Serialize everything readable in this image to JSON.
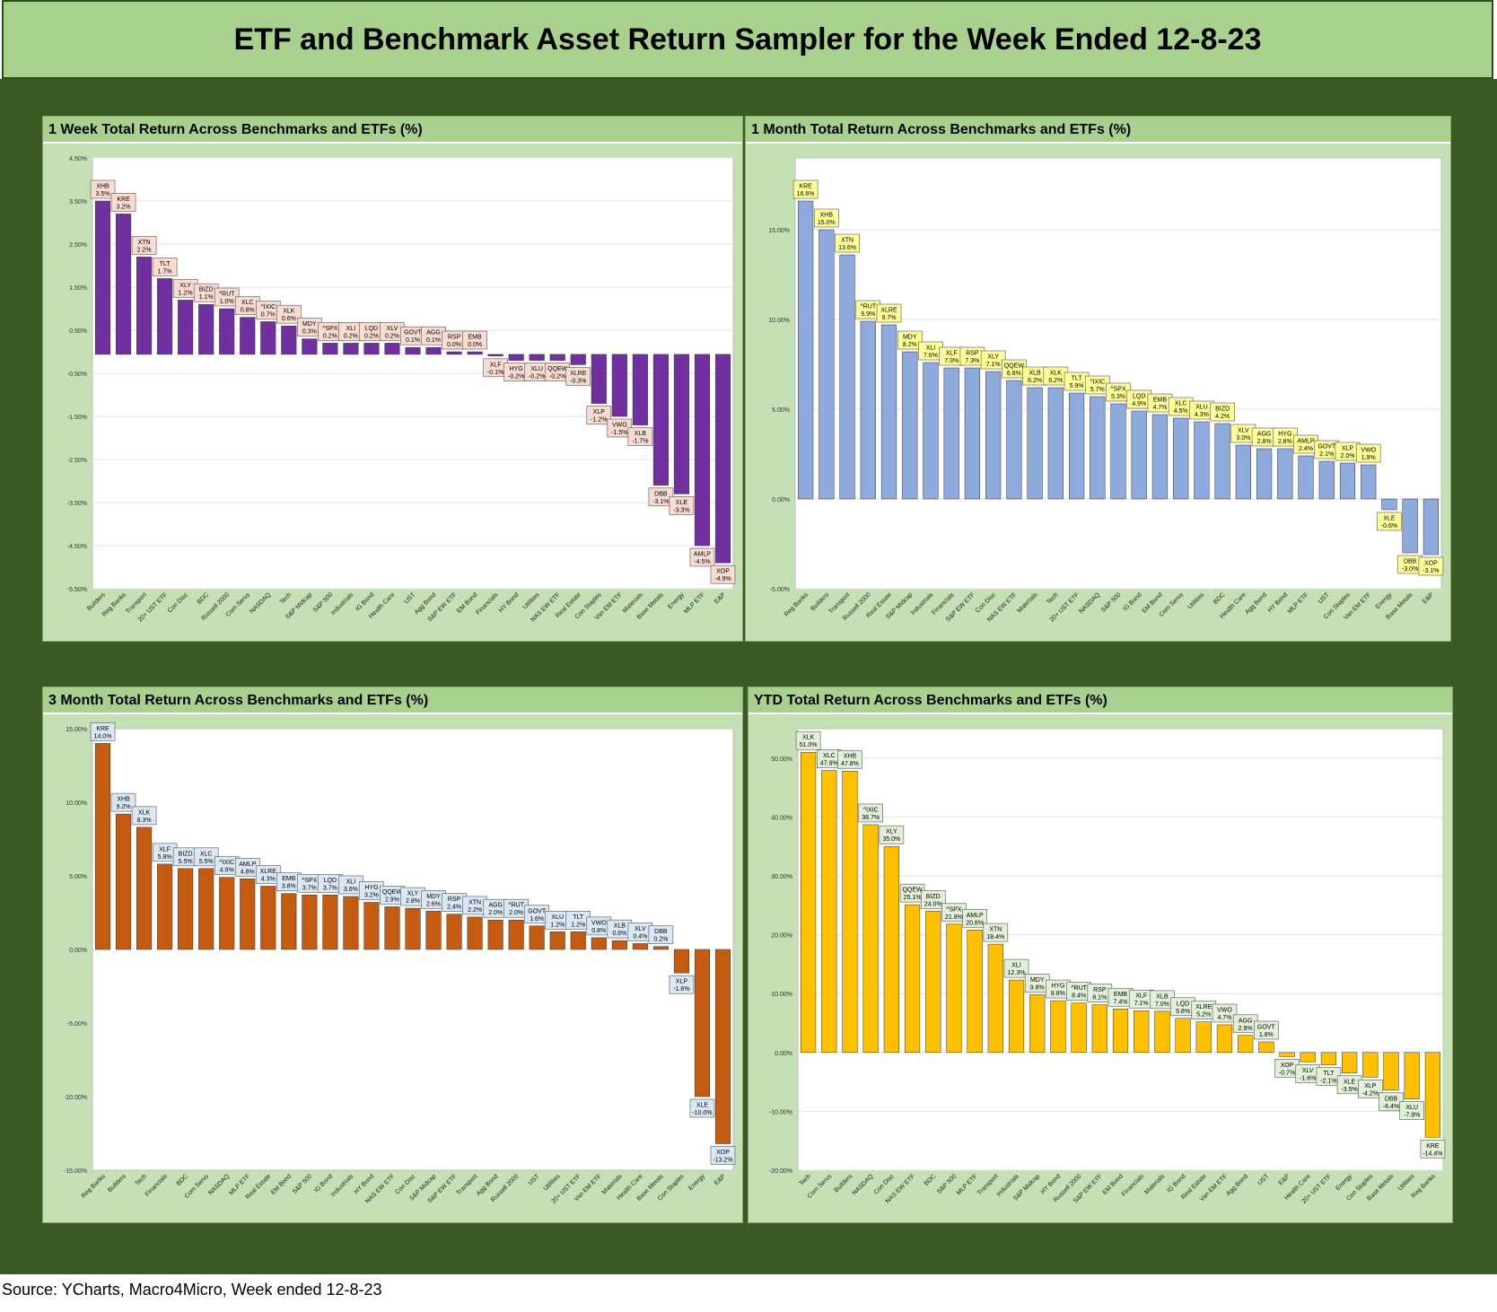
{
  "title": "ETF and Benchmark Asset Return Sampler for the Week Ended 12-8-23",
  "source": "Source: YCharts, Macro4Micro, Week ended 12-8-23",
  "chart_data": [
    {
      "type": "bar",
      "title": "1 Week Total Return Across Benchmarks and ETFs (%)",
      "color": "#7030a0",
      "label_fill": "#f8dcd2",
      "ylim": [
        -5.5,
        4.5
      ],
      "yticks": [
        4.5,
        3.5,
        2.5,
        1.5,
        0.5,
        -0.5,
        -1.5,
        -2.5,
        -3.5,
        -4.5,
        -5.5
      ],
      "baseline": -0.06,
      "grid": true,
      "categories": [
        "Builders",
        "Reg Banks",
        "Transport",
        "20+ UST ETF",
        "Con Disc",
        "BDC",
        "Russell 2000",
        "Com Servs",
        "NASDAQ",
        "Tech",
        "S&P Midcap",
        "S&P 500",
        "Industrials",
        "IG Bond",
        "Health Care",
        "UST",
        "Agg Bond",
        "S&P EW ETF",
        "EM Bond",
        "Financials",
        "HY Bond",
        "Utilities",
        "NAS EW ETF",
        "Real Estate",
        "Con Staples",
        "Van EM ETF",
        "Materials",
        "Base Metals",
        "Energy",
        "MLP ETF",
        "E&P"
      ],
      "tickers": [
        "XHB",
        "KRE",
        "XTN",
        "TLT",
        "XLY",
        "BIZD",
        "^RUT",
        "XLC",
        "^IXIC",
        "XLK",
        "MDY",
        "^SPX",
        "XLI",
        "LQD",
        "XLV",
        "GOVT",
        "AGG",
        "RSP",
        "EMB",
        "XLF",
        "HYG",
        "XLU",
        "QQEW",
        "XLRE",
        "XLP",
        "VWO",
        "XLB",
        "DBB",
        "XLE",
        "AMLP",
        "XOP"
      ],
      "values": [
        3.5,
        3.2,
        2.2,
        1.7,
        1.2,
        1.1,
        1.0,
        0.8,
        0.7,
        0.6,
        0.3,
        0.2,
        0.2,
        0.2,
        0.2,
        0.1,
        0.1,
        0.0,
        0.0,
        -0.1,
        -0.2,
        -0.2,
        -0.2,
        -0.3,
        -1.2,
        -1.5,
        -1.7,
        -3.1,
        -3.3,
        -4.5,
        -4.9
      ]
    },
    {
      "type": "bar",
      "title": "1 Month Total Return Across Benchmarks and ETFs (%)",
      "color": "#8faadc",
      "label_fill": "#ffff99",
      "ylim": [
        -5.0,
        19.0
      ],
      "yticks": [
        15.0,
        10.0,
        5.0,
        0.0,
        -5.0
      ],
      "baseline": 0,
      "grid": true,
      "categories": [
        "Reg Banks",
        "Builders",
        "Transport",
        "Russell 2000",
        "Real Estate",
        "S&P Midcap",
        "Industrials",
        "Financials",
        "S&P EW ETF",
        "Con Disc",
        "NAS EW ETF",
        "Materials",
        "Tech",
        "20+ UST ETF",
        "NASDAQ",
        "S&P 500",
        "IG Bond",
        "EM Bond",
        "Com Servs",
        "Utilities",
        "BDC",
        "Health Care",
        "Agg Bond",
        "HY Bond",
        "MLP ETF",
        "UST",
        "Con Staples",
        "Van EM ETF",
        "Energy",
        "Base Metals",
        "E&P"
      ],
      "tickers": [
        "KRE",
        "XHB",
        "XTN",
        "^RUT",
        "XLRE",
        "MDY",
        "XLI",
        "XLF",
        "RSP",
        "XLY",
        "QQEW",
        "XLB",
        "XLK",
        "TLT",
        "^IXIC",
        "^SPX",
        "LQD",
        "EMB",
        "XLC",
        "XLU",
        "BIZD",
        "XLV",
        "AGG",
        "HYG",
        "AMLP",
        "GOVT",
        "XLP",
        "VWO",
        "XLE",
        "DBB",
        "XOP"
      ],
      "values": [
        16.6,
        15.0,
        13.6,
        9.9,
        9.7,
        8.2,
        7.6,
        7.3,
        7.3,
        7.1,
        6.6,
        6.2,
        6.2,
        5.9,
        5.7,
        5.3,
        4.9,
        4.7,
        4.5,
        4.3,
        4.2,
        3.0,
        2.8,
        2.8,
        2.4,
        2.1,
        2.0,
        1.9,
        -0.6,
        -3.0,
        -3.1
      ]
    },
    {
      "type": "bar",
      "title": "3 Month Total Return Across Benchmarks and ETFs (%)",
      "color": "#c55a11",
      "label_fill": "#dae8f5",
      "ylim": [
        -15.0,
        15.0
      ],
      "yticks": [
        15.0,
        10.0,
        5.0,
        0.0,
        -5.0,
        -10.0,
        -15.0
      ],
      "baseline": 0,
      "grid": false,
      "categories": [
        "Reg Banks",
        "Builders",
        "Tech",
        "Financials",
        "BDC",
        "Com Servs",
        "NASDAQ",
        "MLP ETF",
        "Real Estate",
        "EM Bond",
        "S&P 500",
        "IG Bond",
        "Industrials",
        "HY Bond",
        "NAS EW ETF",
        "Con Disc",
        "S&P Midcap",
        "S&P EW ETF",
        "Transport",
        "Agg Bond",
        "Russell 2000",
        "UST",
        "Utilities",
        "20+ UST ETF",
        "Van EM ETF",
        "Materials",
        "Health Care",
        "Base Metals",
        "Con Staples",
        "Energy",
        "E&P"
      ],
      "tickers": [
        "KRE",
        "XHB",
        "XLK",
        "XLF",
        "BIZD",
        "XLC",
        "^IXIC",
        "AMLP",
        "XLRE",
        "EMB",
        "^SPX",
        "LQD",
        "XLI",
        "HYG",
        "QQEW",
        "XLY",
        "MDY",
        "RSP",
        "XTN",
        "AGG",
        "^RUT",
        "GOVT",
        "XLU",
        "TLT",
        "VWO",
        "XLB",
        "XLV",
        "DBB",
        "XLP",
        "XLE",
        "XOP"
      ],
      "values": [
        14.0,
        9.2,
        8.3,
        5.8,
        5.5,
        5.5,
        4.9,
        4.8,
        4.3,
        3.8,
        3.7,
        3.7,
        3.6,
        3.2,
        2.9,
        2.8,
        2.6,
        2.4,
        2.2,
        2.0,
        2.0,
        1.6,
        1.2,
        1.2,
        0.8,
        0.6,
        0.4,
        0.2,
        -1.6,
        -10.0,
        -13.2
      ]
    },
    {
      "type": "bar",
      "title": "YTD Total Return Across Benchmarks and ETFs (%)",
      "color": "#ffc000",
      "label_fill": "#e2f0d9",
      "ylim": [
        -20.0,
        55.0
      ],
      "yticks": [
        50.0,
        40.0,
        30.0,
        20.0,
        10.0,
        0.0,
        -10.0,
        -20.0
      ],
      "baseline": 0,
      "grid": true,
      "categories": [
        "Tech",
        "Com Servs",
        "Builders",
        "NASDAQ",
        "Con Disc",
        "NAS EW ETF",
        "BDC",
        "S&P 500",
        "MLP ETF",
        "Transport",
        "Industrials",
        "S&P Midcap",
        "HY Bond",
        "Russell 2000",
        "S&P EW ETF",
        "EM Bond",
        "Financials",
        "Materials",
        "IG Bond",
        "Real Estate",
        "Van EM ETF",
        "Agg Bond",
        "UST",
        "E&P",
        "Health Care",
        "20+ UST ETF",
        "Energy",
        "Con Staples",
        "Base Metals",
        "Utilities",
        "Reg Banks"
      ],
      "tickers": [
        "XLK",
        "XLC",
        "XHB",
        "^IXIC",
        "XLY",
        "QQEW",
        "BIZD",
        "^SPX",
        "AMLP",
        "XTN",
        "XLI",
        "MDY",
        "HYG",
        "^RUT",
        "RSP",
        "EMB",
        "XLF",
        "XLB",
        "LQD",
        "XLRE",
        "VWO",
        "AGG",
        "GOVT",
        "XOP",
        "XLV",
        "TLT",
        "XLE",
        "XLP",
        "DBB",
        "XLU",
        "KRE"
      ],
      "values": [
        51.0,
        47.9,
        47.8,
        38.7,
        35.0,
        25.1,
        24.0,
        21.8,
        20.8,
        18.4,
        12.3,
        9.8,
        8.8,
        8.4,
        8.1,
        7.4,
        7.1,
        7.0,
        5.8,
        5.2,
        4.7,
        2.9,
        1.8,
        -0.7,
        -1.6,
        -2.1,
        -3.5,
        -4.2,
        -6.4,
        -7.9,
        -14.4
      ]
    }
  ]
}
